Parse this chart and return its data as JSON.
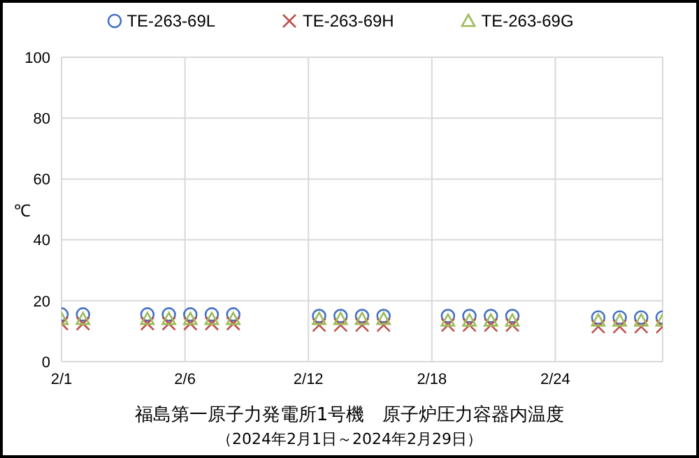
{
  "chart_data": {
    "type": "scatter",
    "title": "福島第一原子力発電所1号機　原子炉圧力容器内温度",
    "subtitle": "（2024年2月1日～2024年2月29日）",
    "ylabel": "℃",
    "x": [
      "--02-01",
      "--02-02",
      "--02-05",
      "--02-06",
      "--02-07",
      "--02-08",
      "--02-09",
      "--02-13",
      "--02-14",
      "--02-15",
      "--02-16",
      "--02-19",
      "--02-20",
      "--02-21",
      "--02-22",
      "--02-26",
      "--02-27",
      "--02-28",
      "--02-29"
    ],
    "series": [
      {
        "name": "TE-263-69L",
        "color": "#4472c4",
        "marker": "circle",
        "values": [
          15.5,
          15.5,
          15.5,
          15.5,
          15.5,
          15.5,
          15.5,
          15,
          15,
          15,
          15,
          15,
          15,
          15,
          15,
          14.5,
          14.5,
          14.5,
          14.5
        ]
      },
      {
        "name": "TE-263-69H",
        "color": "#c0504d",
        "marker": "cross",
        "values": [
          12.5,
          12.5,
          12.5,
          12.5,
          12.5,
          12.5,
          12.5,
          12,
          12,
          12,
          12,
          12,
          12,
          12,
          12,
          11.5,
          11.5,
          11.5,
          11.5
        ]
      },
      {
        "name": "TE-263-69G",
        "color": "#9bbb59",
        "marker": "triangle",
        "values": [
          14,
          14,
          14,
          14,
          14,
          14,
          14,
          14,
          14,
          14,
          14,
          13.5,
          13.5,
          13.5,
          13.5,
          13.5,
          13.5,
          13.5,
          13.5
        ]
      }
    ],
    "xlim": [
      "--02-01",
      "--02-29"
    ],
    "xticks": [
      {
        "value": "--02-01",
        "label": "2/1"
      },
      {
        "value": "--02-06T18:00",
        "label": "2/6"
      },
      {
        "value": "--02-12T12:00",
        "label": "2/12"
      },
      {
        "value": "--02-18T06:00",
        "label": "2/18"
      },
      {
        "value": "--02-24",
        "label": "2/24"
      }
    ],
    "ylim": [
      0,
      100
    ],
    "yticks": [
      0,
      20,
      40,
      60,
      80,
      100
    ],
    "grid": true,
    "legend": "top"
  }
}
